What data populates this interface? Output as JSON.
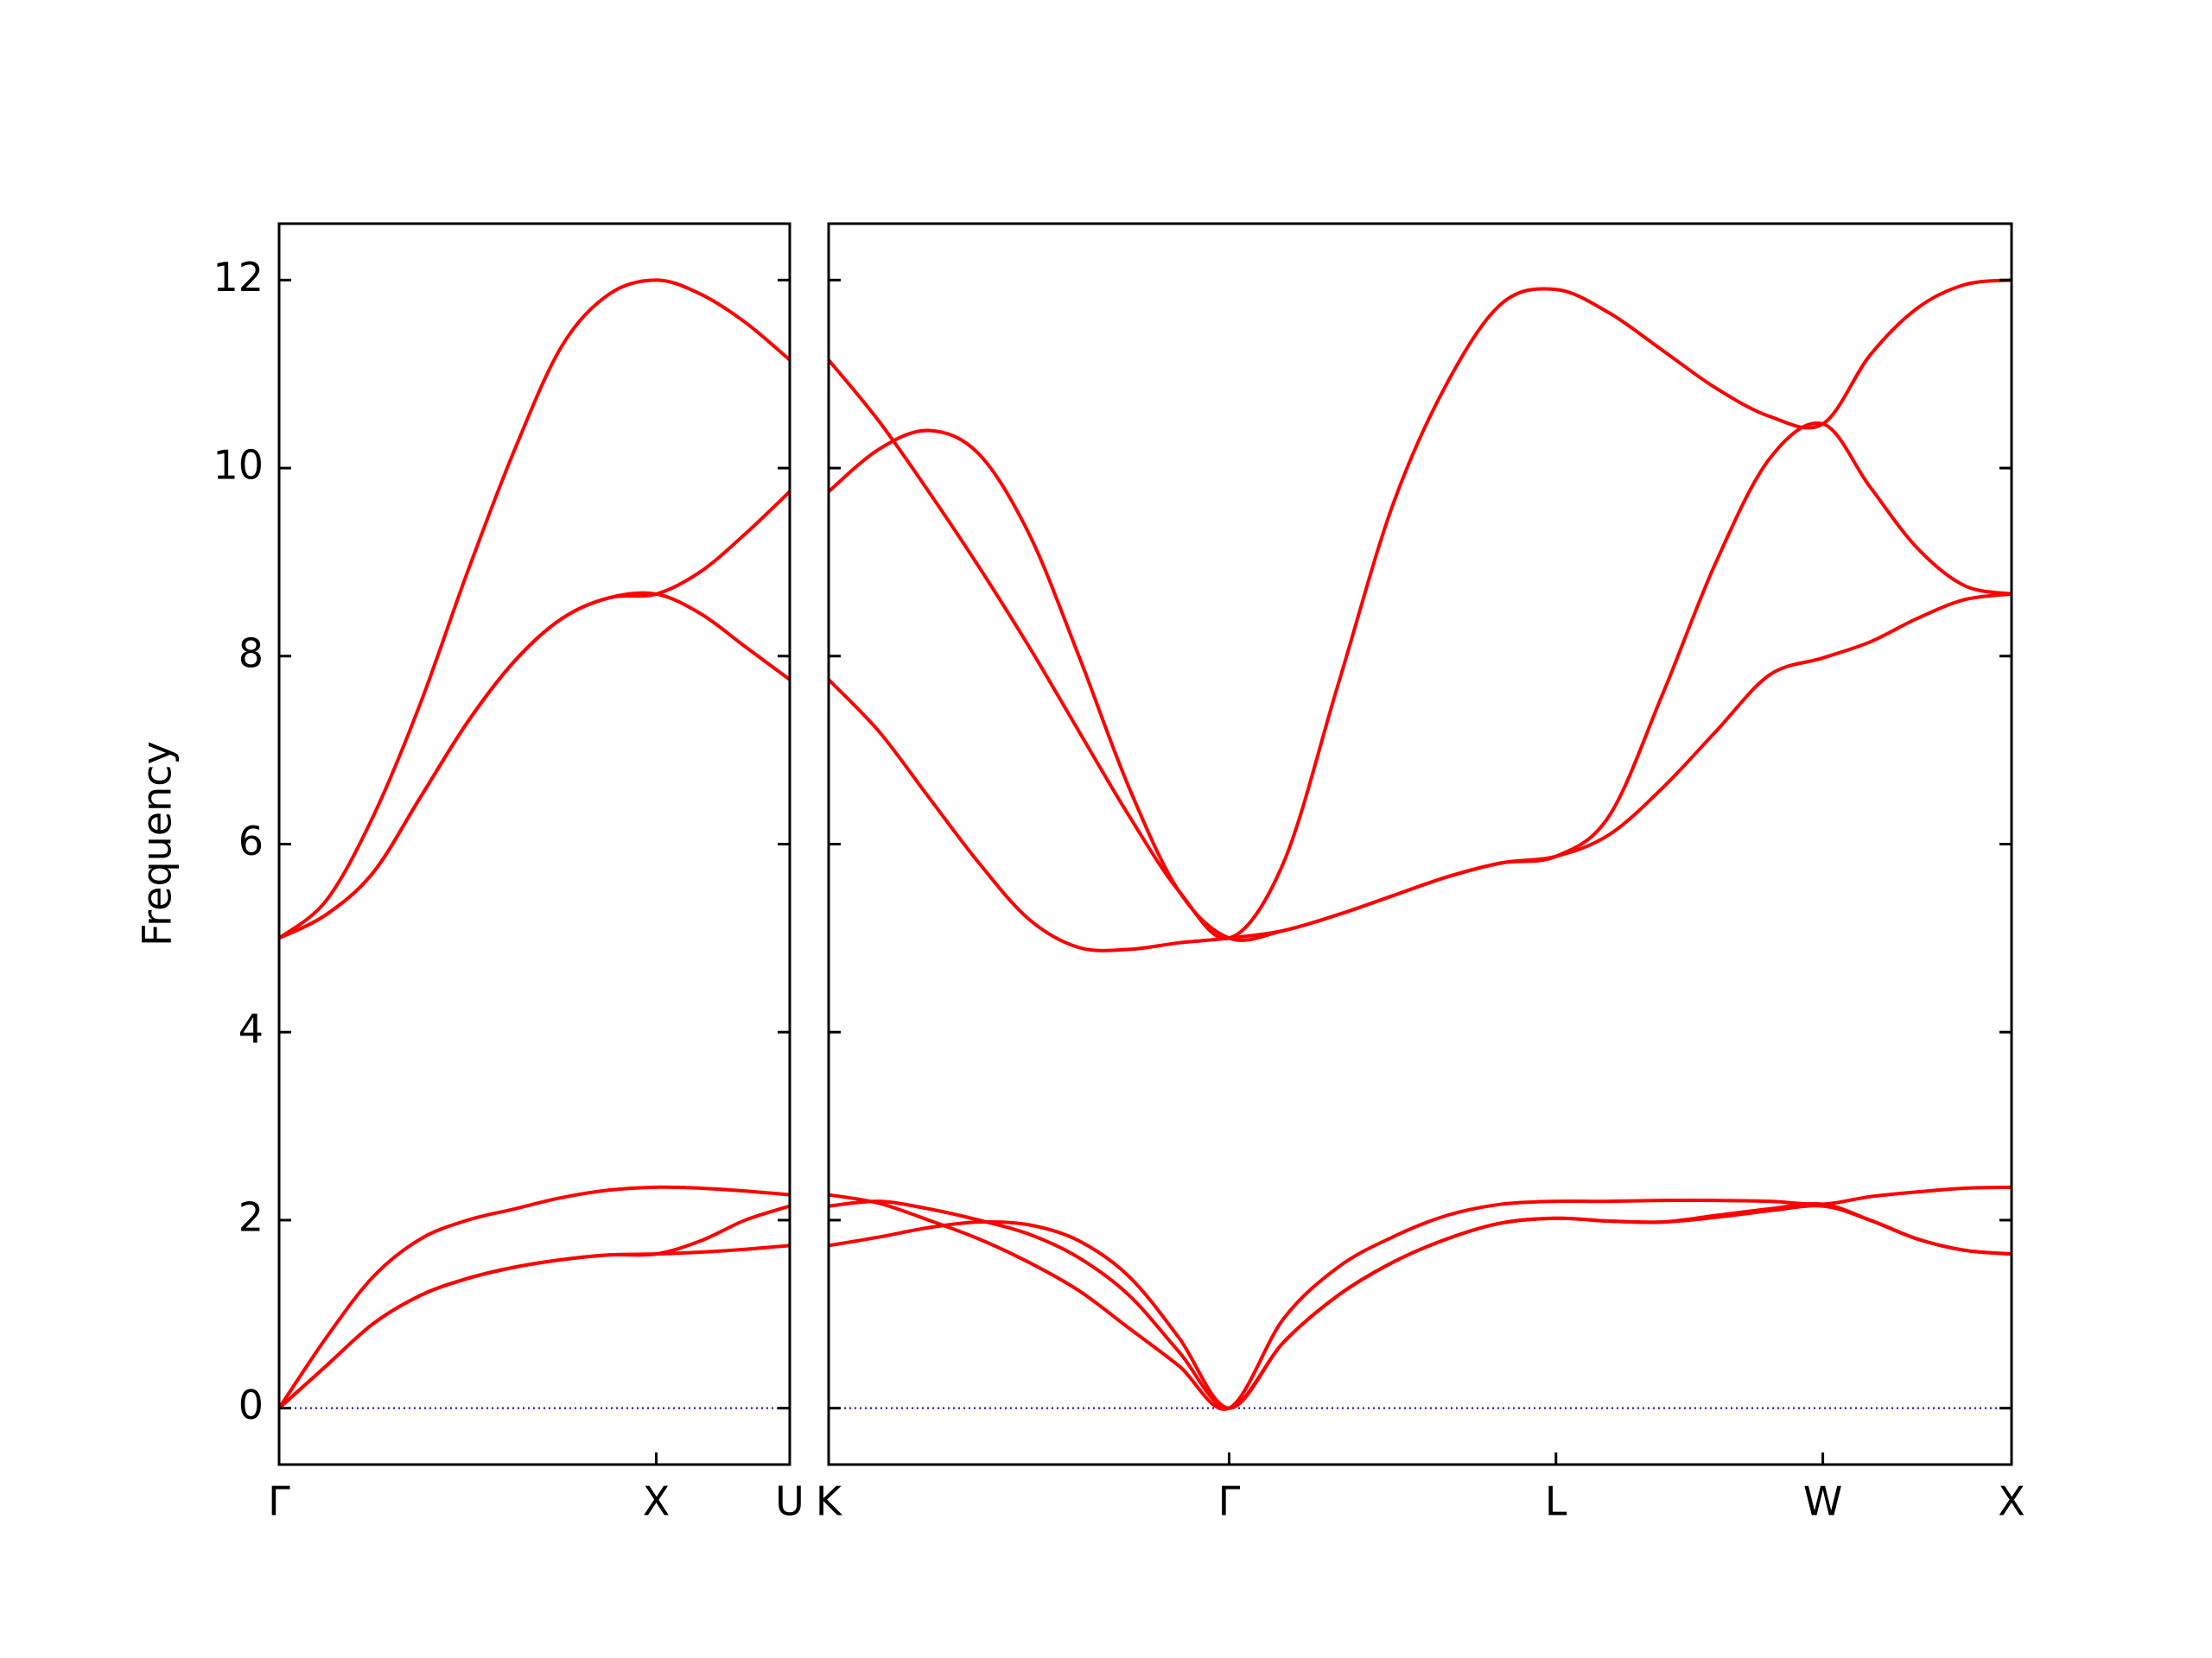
{
  "chart_data": [
    {
      "type": "line",
      "ylabel": "Frequency",
      "x": [
        0,
        0.125,
        0.25,
        0.375,
        0.5,
        0.625,
        0.75,
        0.875,
        1.0,
        1.118,
        1.236,
        1.354
      ],
      "xlim": [
        0,
        1.354
      ],
      "xticks": [
        {
          "value": 0,
          "label": "Γ"
        },
        {
          "value": 1.0,
          "label": "X"
        },
        {
          "value": 1.354,
          "label": "U"
        }
      ],
      "ylim": [
        -0.6,
        12.6
      ],
      "yticks": [
        0,
        2,
        4,
        6,
        8,
        10,
        12
      ],
      "yticklabels": true,
      "zero_line": {
        "value": 0,
        "color": "#0000cc"
      },
      "series": [
        {
          "color": "#ff0000",
          "values": [
            0,
            0.45,
            0.9,
            1.2,
            1.38,
            1.5,
            1.58,
            1.63,
            1.64,
            1.66,
            1.69,
            1.73
          ]
        },
        {
          "color": "#ff0000",
          "values": [
            0,
            0.45,
            0.9,
            1.2,
            1.38,
            1.5,
            1.58,
            1.63,
            1.64,
            1.78,
            2.0,
            2.15
          ]
        },
        {
          "color": "#ff0000",
          "values": [
            0,
            0.75,
            1.4,
            1.8,
            2.0,
            2.12,
            2.24,
            2.32,
            2.35,
            2.34,
            2.31,
            2.27
          ]
        },
        {
          "color": "#ff0000",
          "values": [
            5.0,
            5.25,
            5.7,
            6.5,
            7.3,
            7.95,
            8.4,
            8.62,
            8.66,
            8.45,
            8.1,
            7.75
          ]
        },
        {
          "color": "#ff0000",
          "values": [
            5.0,
            5.25,
            5.7,
            6.5,
            7.3,
            7.95,
            8.4,
            8.62,
            8.66,
            8.9,
            9.3,
            9.75
          ]
        },
        {
          "color": "#ff0000",
          "values": [
            5.0,
            5.4,
            6.3,
            7.5,
            8.9,
            10.2,
            11.3,
            11.85,
            12.0,
            11.85,
            11.55,
            11.15
          ]
        }
      ]
    },
    {
      "type": "line",
      "x": [
        1.354,
        1.487,
        1.619,
        1.752,
        1.885,
        2.017,
        2.15,
        2.282,
        2.415,
        2.559,
        2.704,
        2.848,
        2.992,
        3.137,
        3.281,
        3.422,
        3.564,
        3.705,
        3.847,
        3.988,
        4.113,
        4.238,
        4.363,
        4.488
      ],
      "xlim": [
        1.354,
        4.488
      ],
      "xticks": [
        {
          "value": 1.354,
          "label": "K"
        },
        {
          "value": 2.415,
          "label": "Γ"
        },
        {
          "value": 3.281,
          "label": "L"
        },
        {
          "value": 3.988,
          "label": "W"
        },
        {
          "value": 4.488,
          "label": "X"
        }
      ],
      "ylim": [
        -0.6,
        12.6
      ],
      "yticks": [
        0,
        2,
        4,
        6,
        8,
        10,
        12
      ],
      "yticklabels": false,
      "zero_line": {
        "value": 0,
        "color": "#0000cc"
      },
      "series": [
        {
          "color": "#ff0000",
          "values": [
            2.27,
            2.18,
            2.0,
            1.8,
            1.55,
            1.25,
            0.85,
            0.45,
            0,
            0.95,
            1.5,
            1.82,
            2.05,
            2.17,
            2.2,
            2.2,
            2.21,
            2.21,
            2.2,
            2.17,
            2.25,
            2.3,
            2.34,
            2.35
          ]
        },
        {
          "color": "#ff0000",
          "values": [
            2.15,
            2.2,
            2.12,
            2.0,
            1.85,
            1.6,
            1.2,
            0.6,
            0,
            0.7,
            1.2,
            1.55,
            1.8,
            1.97,
            2.02,
            1.99,
            1.98,
            2.03,
            2.1,
            2.15,
            2.0,
            1.8,
            1.68,
            1.64
          ]
        },
        {
          "color": "#ff0000",
          "values": [
            1.73,
            1.82,
            1.92,
            1.98,
            1.95,
            1.78,
            1.4,
            0.75,
            0,
            0.7,
            1.2,
            1.55,
            1.8,
            1.97,
            2.02,
            1.99,
            1.98,
            2.05,
            2.12,
            2.17,
            2.0,
            1.8,
            1.68,
            1.64
          ]
        },
        {
          "color": "#ff0000",
          "values": [
            7.75,
            7.2,
            6.5,
            5.8,
            5.2,
            4.9,
            4.88,
            4.95,
            5.0,
            5.08,
            5.25,
            5.45,
            5.65,
            5.8,
            5.87,
            6.1,
            6.6,
            7.2,
            7.8,
            7.98,
            8.15,
            8.4,
            8.6,
            8.66
          ]
        },
        {
          "color": "#ff0000",
          "values": [
            9.75,
            10.2,
            10.4,
            10.15,
            9.3,
            8.0,
            6.6,
            5.5,
            5.0,
            5.08,
            5.25,
            5.45,
            5.65,
            5.8,
            5.87,
            6.3,
            7.6,
            9.0,
            10.1,
            10.47,
            9.8,
            9.15,
            8.75,
            8.66
          ]
        },
        {
          "color": "#ff0000",
          "values": [
            11.15,
            10.5,
            9.75,
            8.95,
            8.1,
            7.2,
            6.3,
            5.5,
            5.0,
            5.8,
            7.7,
            9.6,
            10.9,
            11.75,
            11.9,
            11.65,
            11.25,
            10.85,
            10.55,
            10.47,
            11.2,
            11.7,
            11.95,
            12.0
          ]
        }
      ]
    }
  ]
}
